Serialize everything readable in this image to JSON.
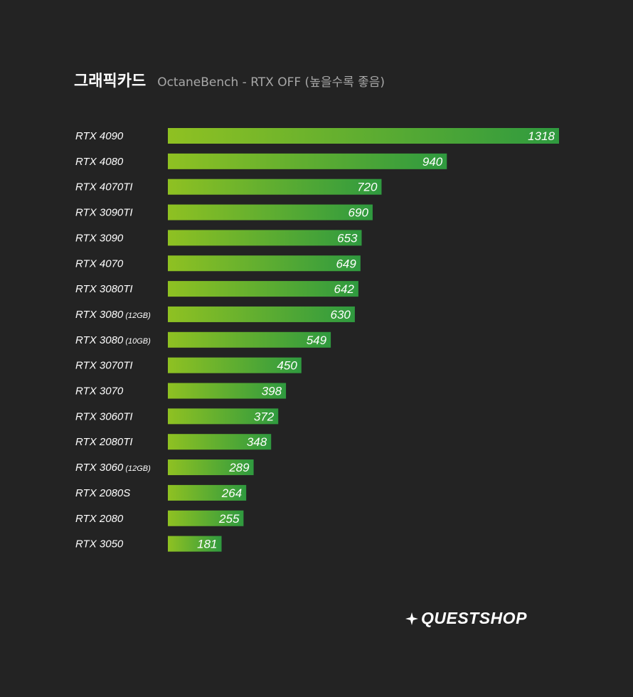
{
  "header": {
    "title": "그래픽카드",
    "subtitle": "OctaneBench - RTX OFF (높을수록 좋음)"
  },
  "brand": {
    "name": "QUESTSHOP",
    "icon": "sparkle-icon"
  },
  "colors": {
    "background": "#232323",
    "bar_start": "#8fc122",
    "bar_end": "#2f9a3f",
    "text": "#ffffff",
    "subtitle": "#a7a7a7"
  },
  "chart_data": {
    "type": "bar",
    "orientation": "horizontal",
    "categories": [
      {
        "name": "RTX 4090",
        "suffix": ""
      },
      {
        "name": "RTX 4080",
        "suffix": ""
      },
      {
        "name": "RTX 4070TI",
        "suffix": ""
      },
      {
        "name": "RTX 3090TI",
        "suffix": ""
      },
      {
        "name": "RTX 3090",
        "suffix": ""
      },
      {
        "name": "RTX 4070",
        "suffix": ""
      },
      {
        "name": "RTX 3080TI",
        "suffix": ""
      },
      {
        "name": "RTX 3080",
        "suffix": "(12GB)"
      },
      {
        "name": "RTX 3080",
        "suffix": "(10GB)"
      },
      {
        "name": "RTX 3070TI",
        "suffix": ""
      },
      {
        "name": "RTX 3070",
        "suffix": ""
      },
      {
        "name": "RTX 3060TI",
        "suffix": ""
      },
      {
        "name": "RTX 2080TI",
        "suffix": ""
      },
      {
        "name": "RTX 3060",
        "suffix": "(12GB)"
      },
      {
        "name": "RTX 2080S",
        "suffix": ""
      },
      {
        "name": "RTX 2080",
        "suffix": ""
      },
      {
        "name": "RTX 3050",
        "suffix": ""
      }
    ],
    "values": [
      1318,
      940,
      720,
      690,
      653,
      649,
      642,
      630,
      549,
      450,
      398,
      372,
      348,
      289,
      264,
      255,
      181
    ],
    "title": "그래픽카드",
    "subtitle": "OctaneBench - RTX OFF (높을수록 좋음)",
    "xlabel": "",
    "ylabel": "",
    "data_labels": true,
    "grid": false,
    "legend": "none"
  }
}
